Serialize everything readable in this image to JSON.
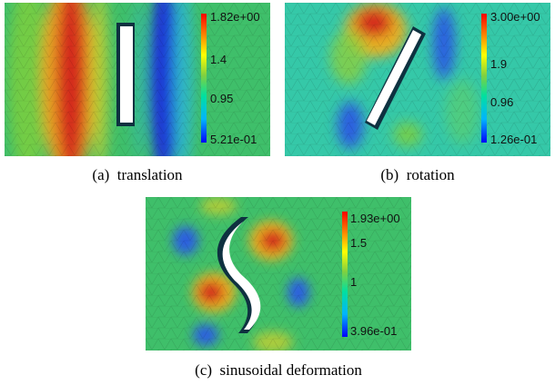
{
  "figures": [
    {
      "caption": "(a)  translation",
      "colorbar": {
        "max": "1.82e+00",
        "upper": "1.4",
        "lower": "0.95",
        "min": "5.21e-01"
      }
    },
    {
      "caption": "(b)  rotation",
      "colorbar": {
        "max": "3.00e+00",
        "upper": "1.9",
        "lower": "0.96",
        "min": "1.26e-01"
      }
    },
    {
      "caption": "(c)  sinusoidal deformation",
      "colorbar": {
        "max": "1.93e+00",
        "upper": "1.5",
        "lower": "1",
        "min": "3.96e-01"
      }
    }
  ],
  "colors": {
    "field_base": "#3fbf6a",
    "high": "#d42a1c",
    "low": "#1d34d6",
    "obstacle_fill": "#ffffff",
    "obstacle_edge": "#0e3140"
  },
  "colorbar_stops": [
    "#0000ff",
    "#00b4ff",
    "#00e0a0",
    "#80d040",
    "#ffff00",
    "#ff8000",
    "#ff0000"
  ]
}
